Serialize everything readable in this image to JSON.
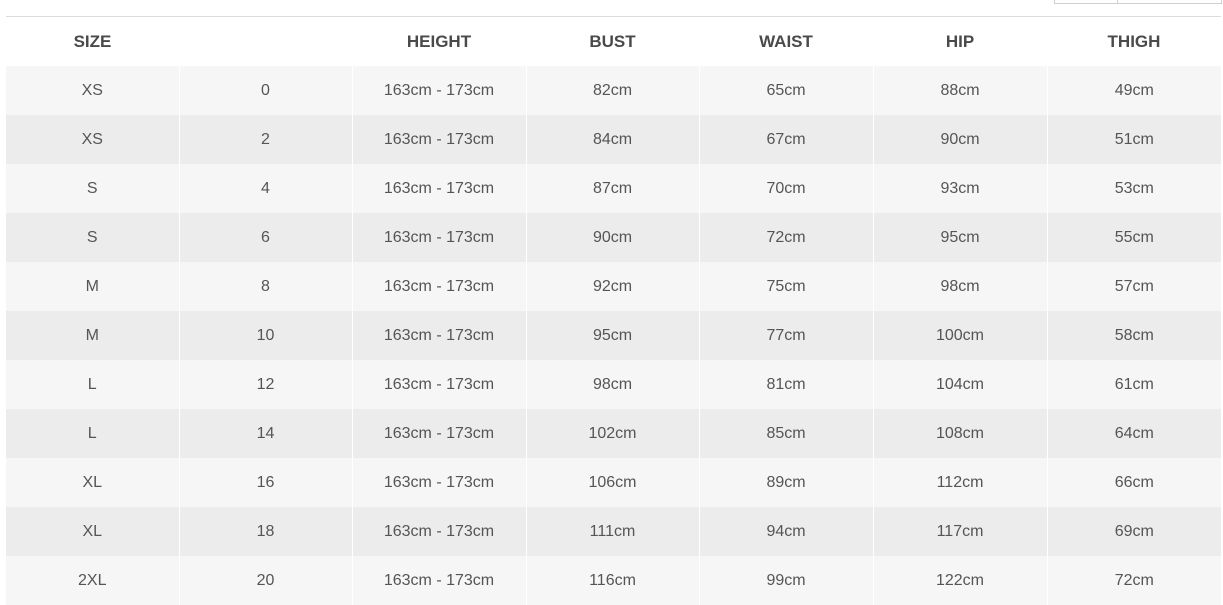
{
  "table": {
    "columns": [
      "SIZE",
      "",
      "HEIGHT",
      "BUST",
      "WAIST",
      "HIP",
      "THIGH"
    ],
    "rows": [
      [
        "XS",
        "0",
        "163cm - 173cm",
        "82cm",
        "65cm",
        "88cm",
        "49cm"
      ],
      [
        "XS",
        "2",
        "163cm - 173cm",
        "84cm",
        "67cm",
        "90cm",
        "51cm"
      ],
      [
        "S",
        "4",
        "163cm - 173cm",
        "87cm",
        "70cm",
        "93cm",
        "53cm"
      ],
      [
        "S",
        "6",
        "163cm - 173cm",
        "90cm",
        "72cm",
        "95cm",
        "55cm"
      ],
      [
        "M",
        "8",
        "163cm - 173cm",
        "92cm",
        "75cm",
        "98cm",
        "57cm"
      ],
      [
        "M",
        "10",
        "163cm - 173cm",
        "95cm",
        "77cm",
        "100cm",
        "58cm"
      ],
      [
        "L",
        "12",
        "163cm - 173cm",
        "98cm",
        "81cm",
        "104cm",
        "61cm"
      ],
      [
        "L",
        "14",
        "163cm - 173cm",
        "102cm",
        "85cm",
        "108cm",
        "64cm"
      ],
      [
        "XL",
        "16",
        "163cm - 173cm",
        "106cm",
        "89cm",
        "112cm",
        "66cm"
      ],
      [
        "XL",
        "18",
        "163cm - 173cm",
        "111cm",
        "94cm",
        "117cm",
        "69cm"
      ],
      [
        "2XL",
        "20",
        "163cm - 173cm",
        "116cm",
        "99cm",
        "122cm",
        "72cm"
      ]
    ]
  },
  "colors": {
    "header_text": "#4a4a4a",
    "cell_text": "#555555",
    "row_light": "#f6f6f6",
    "row_dark": "#ececec",
    "rule": "#dcdcdc"
  }
}
